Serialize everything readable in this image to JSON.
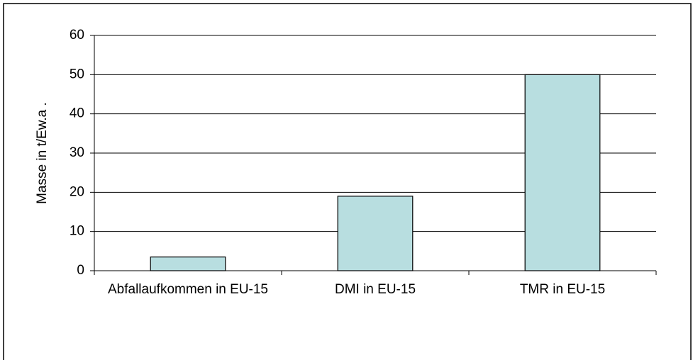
{
  "chart_data": {
    "type": "bar",
    "ylabel": "Masse in t/Ew.a   .",
    "categories": [
      "Abfallaufkommen in EU-15",
      "DMI in EU-15",
      "TMR in EU-15"
    ],
    "values": [
      3.5,
      19,
      50
    ],
    "color": "#b8dee0",
    "ylim": [
      0,
      60
    ],
    "yticks": [
      0,
      10,
      20,
      30,
      40,
      50,
      60
    ],
    "grid": true
  }
}
